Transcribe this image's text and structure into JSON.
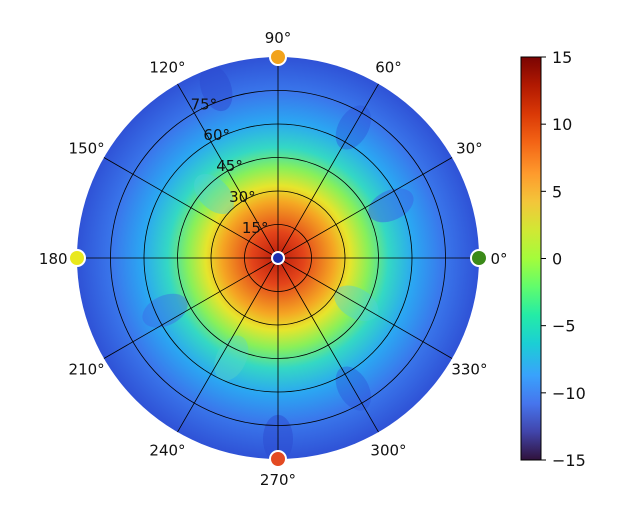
{
  "chart_data": {
    "type": "heatmap",
    "projection": "polar",
    "title": "",
    "angle_ticks": [
      "0°",
      "30°",
      "60°",
      "90°",
      "120°",
      "150°",
      "180°",
      "210°",
      "240°",
      "270°",
      "300°",
      "330°"
    ],
    "radial_ticks": [
      "15°",
      "30°",
      "45°",
      "60°",
      "75°"
    ],
    "radial_tick_values": [
      15,
      30,
      45,
      60,
      75
    ],
    "radial_range": [
      0,
      90
    ],
    "grid": true,
    "colorbar": {
      "colormap": "turbo",
      "range": [
        -15,
        15
      ],
      "ticks": [
        "15",
        "10",
        "5",
        "0",
        "−5",
        "−10",
        "−15"
      ],
      "tick_values": [
        15,
        10,
        5,
        0,
        -5,
        -10,
        -15
      ]
    },
    "field_peak_approx": 13,
    "field_background_approx": -8,
    "markers": [
      {
        "angle_deg": 0,
        "value": 1,
        "color": "#3b8a19"
      },
      {
        "angle_deg": 90,
        "value": 10,
        "color": "#f2a31c"
      },
      {
        "angle_deg": 180,
        "value": 6,
        "color": "#e9e81e"
      },
      {
        "angle_deg": 270,
        "value": 13,
        "color": "#e34a22"
      },
      {
        "angle_deg": 0,
        "value": -13,
        "color": "#1b2fae",
        "at_center": true
      }
    ]
  }
}
